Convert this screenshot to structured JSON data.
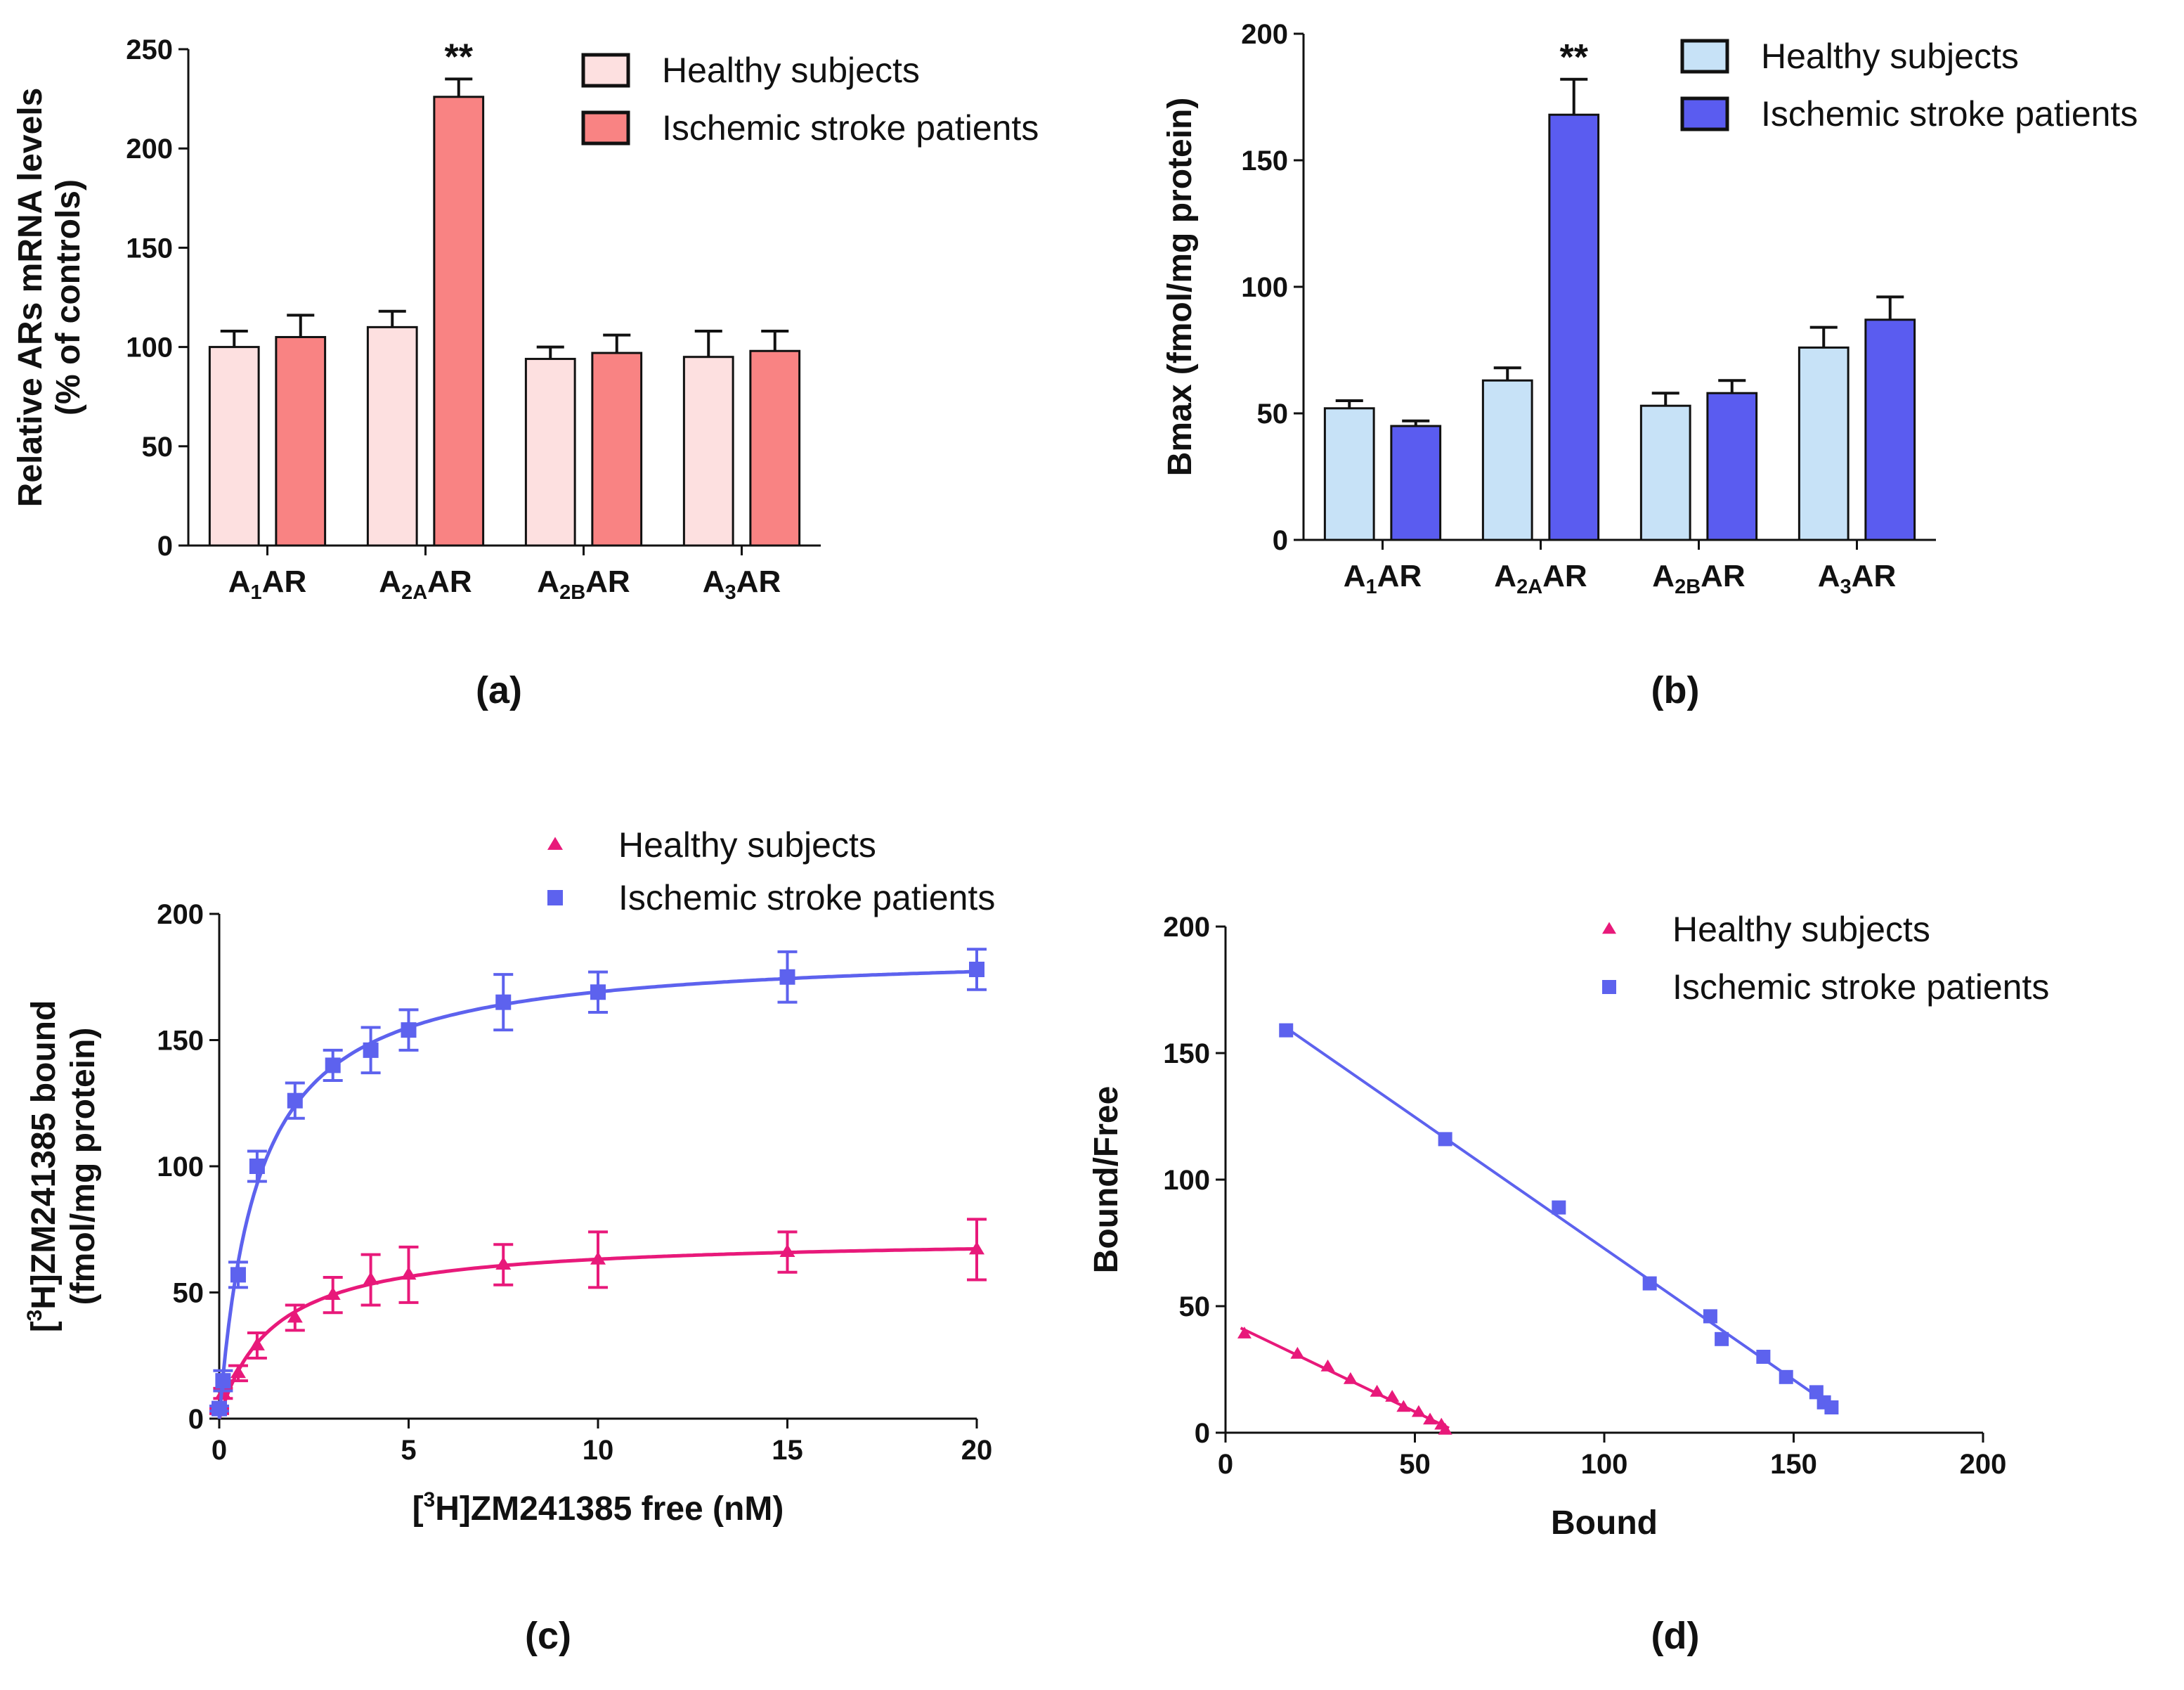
{
  "panels": {
    "a": {
      "label": "(a)"
    },
    "b": {
      "label": "(b)"
    },
    "c": {
      "label": "(c)"
    },
    "d": {
      "label": "(d)"
    }
  },
  "colors": {
    "a_healthy": "#fde0e0",
    "a_stroke": "#f98383",
    "b_healthy": "#c7e2f7",
    "b_stroke": "#5a5cf0",
    "c_healthy": "#e8197a",
    "c_stroke": "#5d62ee",
    "outline": "#111111"
  },
  "chart_data": [
    {
      "id": "a",
      "type": "bar",
      "title": "",
      "categories": [
        {
          "main": "A",
          "sub": "1",
          "suffix": "AR"
        },
        {
          "main": "A",
          "sub": "2A",
          "suffix": "AR"
        },
        {
          "main": "A",
          "sub": "2B",
          "suffix": "AR"
        },
        {
          "main": "A",
          "sub": "3",
          "suffix": "AR"
        }
      ],
      "series": [
        {
          "name": "Healthy subjects",
          "values": [
            100,
            110,
            94,
            95
          ],
          "errors": [
            8,
            8,
            6,
            13
          ]
        },
        {
          "name": "Ischemic stroke patients",
          "values": [
            105,
            226,
            97,
            98
          ],
          "errors": [
            11,
            9,
            9,
            10
          ]
        }
      ],
      "annotations": [
        {
          "category": 1,
          "series": 1,
          "text": "**"
        }
      ],
      "ylabel_lines": [
        "Relative ARs mRNA levels",
        "(% of controls)"
      ],
      "xlabel": "",
      "ylim": [
        0,
        250
      ],
      "yticks": [
        0,
        50,
        100,
        150,
        200,
        250
      ],
      "legend": "top-right"
    },
    {
      "id": "b",
      "type": "bar",
      "title": "",
      "categories": [
        {
          "main": "A",
          "sub": "1",
          "suffix": "AR"
        },
        {
          "main": "A",
          "sub": "2A",
          "suffix": "AR"
        },
        {
          "main": "A",
          "sub": "2B",
          "suffix": "AR"
        },
        {
          "main": "A",
          "sub": "3",
          "suffix": "AR"
        }
      ],
      "series": [
        {
          "name": "Healthy subjects",
          "values": [
            52,
            63,
            53,
            76
          ],
          "errors": [
            3,
            5,
            5,
            8
          ]
        },
        {
          "name": "Ischemic stroke patients",
          "values": [
            45,
            168,
            58,
            87
          ],
          "errors": [
            2,
            14,
            5,
            9
          ]
        }
      ],
      "annotations": [
        {
          "category": 1,
          "series": 1,
          "text": "**"
        }
      ],
      "ylabel_lines": [
        "Bmax (fmol/mg protein)"
      ],
      "xlabel": "",
      "ylim": [
        0,
        200
      ],
      "yticks": [
        0,
        50,
        100,
        150,
        200
      ],
      "legend": "top-right"
    },
    {
      "id": "c",
      "type": "scatter",
      "title": "",
      "series": [
        {
          "name": "Healthy subjects",
          "marker": "triangle",
          "x": [
            0,
            0.1,
            0.5,
            1,
            2,
            3,
            4,
            5,
            7.5,
            10,
            15,
            20
          ],
          "y": [
            3,
            10,
            18,
            29,
            40,
            49,
            55,
            57,
            61,
            63,
            66,
            67
          ],
          "errors": [
            1,
            2,
            3,
            5,
            5,
            7,
            10,
            11,
            8,
            11,
            8,
            12
          ],
          "fit": {
            "model": "one-site binding",
            "Bmax": 72,
            "Kd": 1.4
          }
        },
        {
          "name": "Ischemic stroke patients",
          "marker": "square",
          "x": [
            0,
            0.1,
            0.5,
            1,
            2,
            3,
            4,
            5,
            7.5,
            10,
            15,
            20
          ],
          "y": [
            4,
            15,
            57,
            100,
            126,
            140,
            146,
            154,
            165,
            169,
            175,
            178
          ],
          "errors": [
            1,
            4,
            5,
            6,
            7,
            6,
            9,
            8,
            11,
            8,
            10,
            8
          ],
          "fit": {
            "model": "one-site binding",
            "Bmax": 186,
            "Kd": 1.0
          }
        }
      ],
      "ylabel_lines": [
        [
          {
            "t": "["
          },
          {
            "t": "3",
            "sup": true
          },
          {
            "t": "H]ZM241385 bound"
          }
        ],
        [
          {
            "t": "(fmol/mg protein)"
          }
        ]
      ],
      "xlabel": [
        {
          "t": "["
        },
        {
          "t": "3",
          "sup": true
        },
        {
          "t": "H]ZM241385 free (nM)"
        }
      ],
      "xlim": [
        0,
        20
      ],
      "ylim": [
        0,
        200
      ],
      "xticks": [
        0,
        5,
        10,
        15,
        20
      ],
      "yticks": [
        0,
        50,
        100,
        150,
        200
      ],
      "legend": "top-center"
    },
    {
      "id": "d",
      "type": "scatter",
      "title": "",
      "series": [
        {
          "name": "Healthy subjects",
          "marker": "triangle",
          "x": [
            5,
            19,
            27,
            33,
            40,
            44,
            47,
            51,
            54,
            57,
            58
          ],
          "y": [
            39,
            31,
            26,
            21,
            16,
            14,
            10,
            8,
            5,
            3,
            1
          ],
          "fit": {
            "model": "linear",
            "x1": 4,
            "x2": 59
          }
        },
        {
          "name": "Ischemic stroke patients",
          "marker": "square",
          "x": [
            16,
            58,
            88,
            112,
            128,
            131,
            142,
            148,
            156,
            158,
            160
          ],
          "y": [
            159,
            116,
            89,
            59,
            46,
            37,
            30,
            22,
            16,
            12,
            10
          ],
          "fit": {
            "model": "linear",
            "x1": 16,
            "x2": 160
          }
        }
      ],
      "ylabel_lines": [
        "Bound/Free"
      ],
      "xlabel": "Bound",
      "xlim": [
        0,
        200
      ],
      "ylim": [
        0,
        200
      ],
      "xticks": [
        0,
        50,
        100,
        150,
        200
      ],
      "yticks": [
        0,
        50,
        100,
        150,
        200
      ],
      "legend": "top-right"
    }
  ]
}
